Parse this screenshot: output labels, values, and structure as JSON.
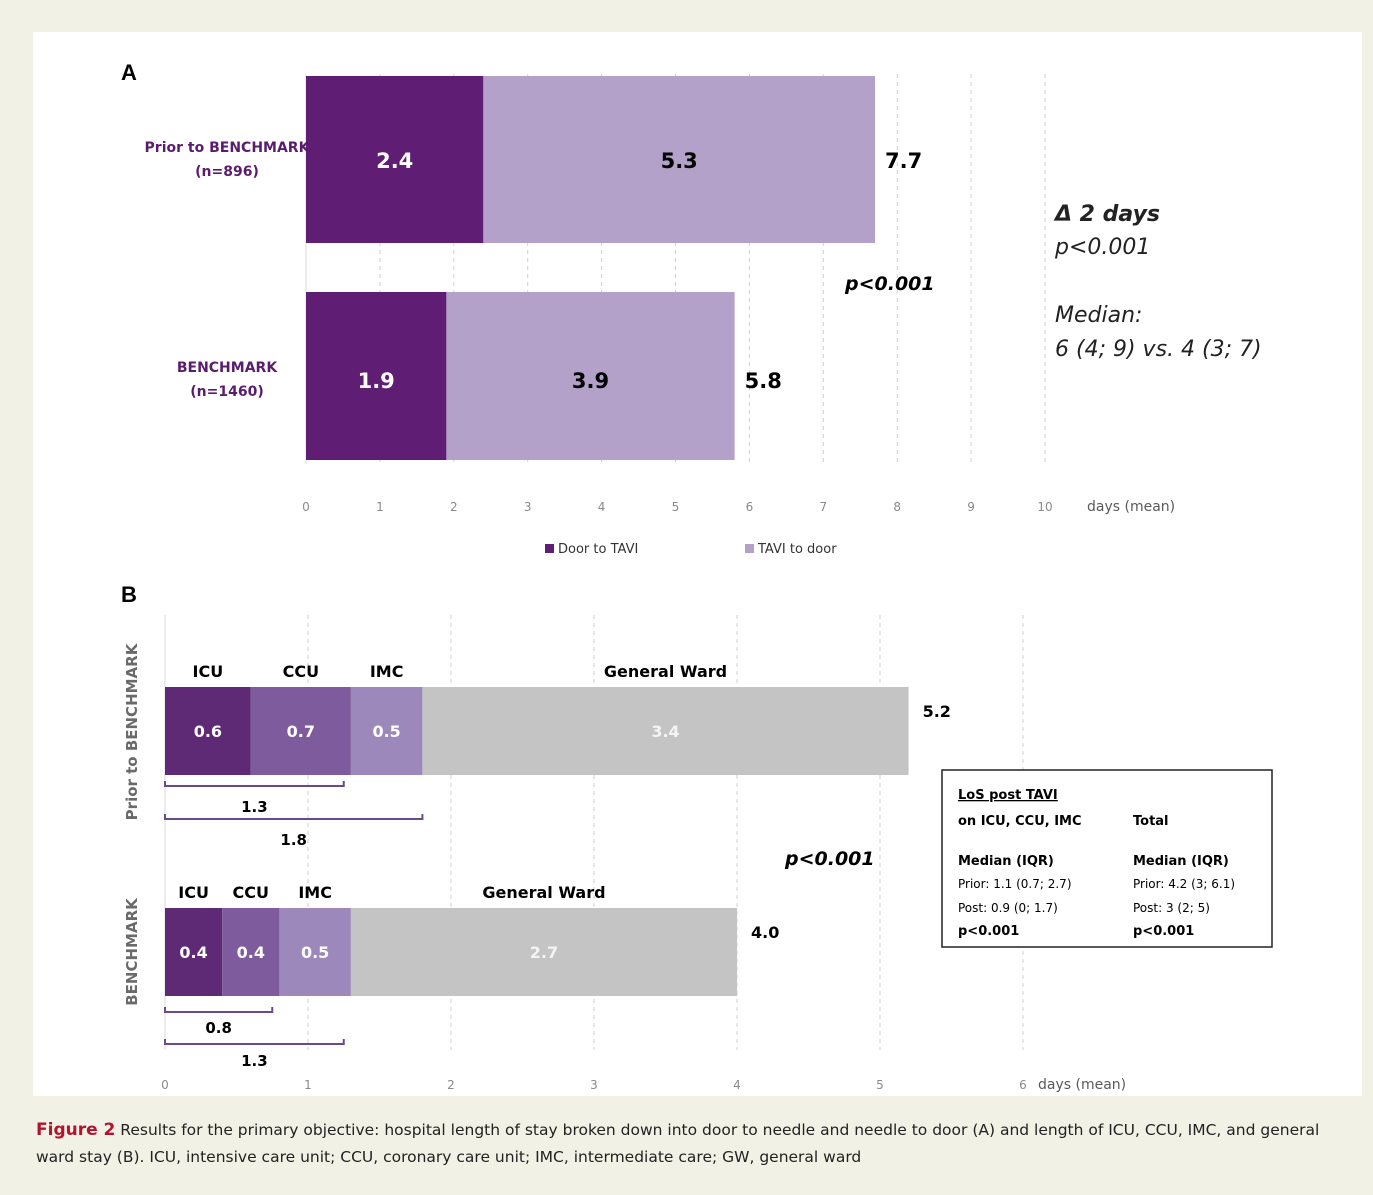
{
  "colors": {
    "dark_purple": "#5f1e73",
    "light_purple": "#b3a1c9",
    "icu": "#5e2a75",
    "ccu": "#7e5b9c",
    "imc": "#9d88bb",
    "general_ward": "#c4c4c4",
    "caption_red": "#b5122f",
    "background": "#f2f1e6"
  },
  "chart_data": [
    {
      "panel": "A",
      "type": "bar",
      "orientation": "horizontal",
      "stacked": true,
      "categories": [
        "Prior to BENCHMARK\n(n=896)",
        "BENCHMARK\n(n=1460)"
      ],
      "category_lines": [
        [
          "Prior to BENCHMARK",
          "(n=896)"
        ],
        [
          "BENCHMARK",
          "(n=1460)"
        ]
      ],
      "series": [
        {
          "name": "Door to TAVI",
          "values": [
            2.4,
            1.9
          ],
          "labels": [
            "2.4",
            "1.9"
          ],
          "color": "#5f1e73"
        },
        {
          "name": "TAVI to door",
          "values": [
            5.3,
            3.9
          ],
          "labels": [
            "5.3",
            "3.9"
          ],
          "color": "#b3a1c9"
        }
      ],
      "totals": [
        7.7,
        5.8
      ],
      "total_labels": [
        "7.7",
        "5.8"
      ],
      "xlim": [
        0,
        10
      ],
      "x_ticks": [
        "0",
        "1",
        "2",
        "3",
        "4",
        "5",
        "6",
        "7",
        "8",
        "9",
        "10"
      ],
      "xlabel": "days (mean)",
      "grid": "vertical dashed",
      "legend_position": "bottom",
      "legend": [
        "Door to TAVI",
        "TAVI to door"
      ],
      "annotations": [
        "p<0.001"
      ],
      "side_notes": [
        "Δ 2 days",
        "p<0.001",
        "Median:",
        "6 (4; 9) vs. 4 (3; 7)"
      ]
    },
    {
      "panel": "B",
      "type": "bar",
      "orientation": "horizontal",
      "stacked": true,
      "categories": [
        "Prior to BENCHMARK",
        "BENCHMARK"
      ],
      "segment_names": [
        "ICU",
        "CCU",
        "IMC",
        "General Ward"
      ],
      "series": [
        {
          "name": "ICU",
          "values": [
            0.6,
            0.4
          ],
          "labels": [
            "0.6",
            "0.4"
          ],
          "color": "#5e2a75"
        },
        {
          "name": "CCU",
          "values": [
            0.7,
            0.4
          ],
          "labels": [
            "0.7",
            "0.4"
          ],
          "color": "#7e5b9c"
        },
        {
          "name": "IMC",
          "values": [
            0.5,
            0.5
          ],
          "labels": [
            "0.5",
            "0.5"
          ],
          "color": "#9d88bb"
        },
        {
          "name": "General Ward",
          "values": [
            3.4,
            2.7
          ],
          "labels": [
            "3.4",
            "2.7"
          ],
          "color": "#c4c4c4"
        }
      ],
      "totals": [
        5.2,
        4.0
      ],
      "total_labels": [
        "5.2",
        "4.0"
      ],
      "brackets": [
        {
          "bar": "Prior to BENCHMARK",
          "start": 0,
          "end": 1.25,
          "label": "1.3"
        },
        {
          "bar": "Prior to BENCHMARK",
          "start": 0,
          "end": 1.8,
          "label": "1.8"
        },
        {
          "bar": "BENCHMARK",
          "start": 0,
          "end": 0.75,
          "label": "0.8"
        },
        {
          "bar": "BENCHMARK",
          "start": 0,
          "end": 1.25,
          "label": "1.3"
        }
      ],
      "xlim": [
        0,
        6
      ],
      "x_ticks": [
        "0",
        "1",
        "2",
        "3",
        "4",
        "5",
        "6"
      ],
      "xlabel": "days (mean)",
      "grid": "vertical dashed",
      "annotations": [
        "p<0.001"
      ]
    }
  ],
  "panel_labels": [
    "A",
    "B"
  ],
  "los_box": {
    "title": "LoS post TAVI",
    "col1_header": "on ICU, CCU, IMC",
    "col2_header": "Total",
    "col1_rows": [
      "Median (IQR)",
      "Prior: 1.1 (0.7; 2.7)",
      "Post: 0.9 (0; 1.7)",
      "p<0.001"
    ],
    "col2_rows": [
      "Median (IQR)",
      "Prior: 4.2 (3; 6.1)",
      "Post: 3 (2; 5)",
      "p<0.001"
    ]
  },
  "caption": {
    "figure_label": "Figure 2",
    "text": " Results for the primary objective: hospital length of stay broken down into door to needle and needle to door (A) and length of ICU, CCU, IMC, and general ward stay (B). ICU, intensive care unit; CCU, coronary care unit; IMC, intermediate care; GW, general ward"
  }
}
